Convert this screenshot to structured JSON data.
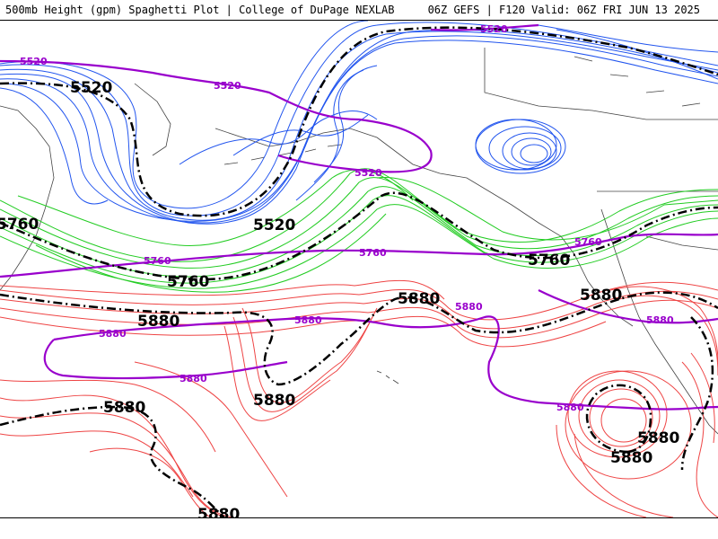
{
  "header": {
    "left_title": "500mb Height (gpm) Spaghetti Plot | College of DuPage NEXLAB",
    "right_title": "06Z GEFS | F120 Valid: 06Z FRI JUN 13 2025"
  },
  "colors": {
    "contour_5520": "#2255ee",
    "contour_5760": "#22cc22",
    "contour_5880": "#ee4444",
    "climatology": "#9900cc",
    "ensemble_mean": "#000000",
    "coastline": "#444444"
  },
  "labels": {
    "mean_5520": "5520",
    "mean_5760": "5760",
    "mean_5880": "5880",
    "clim_5520": "5520",
    "clim_5760": "5760",
    "clim_5880": "5880"
  }
}
